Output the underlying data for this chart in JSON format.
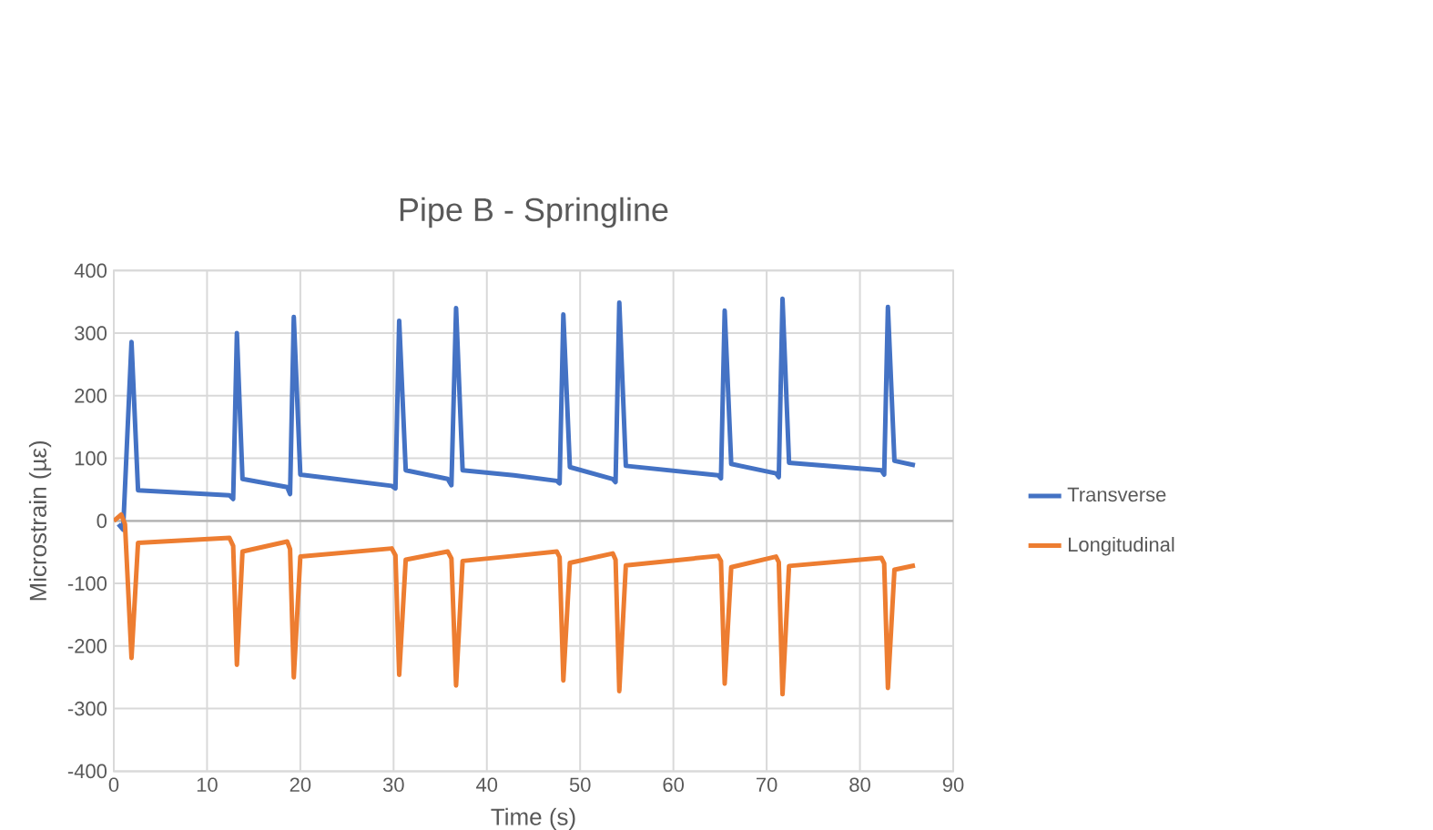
{
  "chart_data": {
    "type": "line",
    "title": "Pipe B - Springline",
    "xlabel": "Time (s)",
    "ylabel": "Microstrain (µε)",
    "xlim": [
      0,
      90
    ],
    "xticks": [
      0,
      10,
      20,
      30,
      40,
      50,
      60,
      70,
      80,
      90
    ],
    "ylim": [
      -400,
      400
    ],
    "yticks": [
      -400,
      -300,
      -200,
      -100,
      0,
      100,
      200,
      300,
      400
    ],
    "grid": true,
    "legend": "right",
    "line_style": "solid",
    "series": [
      {
        "name": "Transverse",
        "color": "#4472c4",
        "x": [
          0.5,
          1.0,
          1.9,
          2.6,
          12.4,
          12.8,
          13.2,
          13.8,
          18.6,
          18.9,
          19.3,
          20.0,
          29.8,
          30.2,
          30.6,
          31.3,
          35.8,
          36.2,
          36.7,
          37.4,
          42.9,
          47.5,
          47.8,
          48.2,
          48.9,
          53.5,
          53.8,
          54.2,
          54.9,
          64.8,
          65.1,
          65.5,
          66.2,
          71.0,
          71.3,
          71.7,
          72.4,
          82.3,
          82.6,
          83.0,
          83.7,
          85.9
        ],
        "values": [
          -5,
          -14,
          286,
          49,
          41,
          35,
          300,
          67,
          54,
          43,
          326,
          74,
          56,
          52,
          320,
          81,
          67,
          57,
          340,
          81,
          73,
          64,
          60,
          330,
          86,
          67,
          62,
          349,
          88,
          73,
          68,
          336,
          91,
          76,
          70,
          355,
          93,
          81,
          74,
          342,
          96,
          89
        ]
      },
      {
        "name": "Longitudinal",
        "color": "#ed7d31",
        "x": [
          0.0,
          0.8,
          1.2,
          1.9,
          2.6,
          12.4,
          12.8,
          13.2,
          13.8,
          18.6,
          18.9,
          19.3,
          20.0,
          29.8,
          30.2,
          30.6,
          31.3,
          35.8,
          36.2,
          36.7,
          37.4,
          42.9,
          47.5,
          47.8,
          48.2,
          48.9,
          53.5,
          53.8,
          54.2,
          54.9,
          64.8,
          65.1,
          65.5,
          66.2,
          71.0,
          71.3,
          71.7,
          72.4,
          82.3,
          82.6,
          83.0,
          83.7,
          85.9
        ],
        "values": [
          0,
          10,
          -5,
          -219,
          -35,
          -27,
          -40,
          -230,
          -49,
          -33,
          -45,
          -250,
          -57,
          -44,
          -55,
          -246,
          -62,
          -49,
          -60,
          -263,
          -64,
          -56,
          -49,
          -58,
          -255,
          -67,
          -52,
          -62,
          -272,
          -71,
          -56,
          -64,
          -260,
          -74,
          -57,
          -66,
          -277,
          -72,
          -59,
          -68,
          -267,
          -78,
          -71
        ]
      }
    ]
  }
}
